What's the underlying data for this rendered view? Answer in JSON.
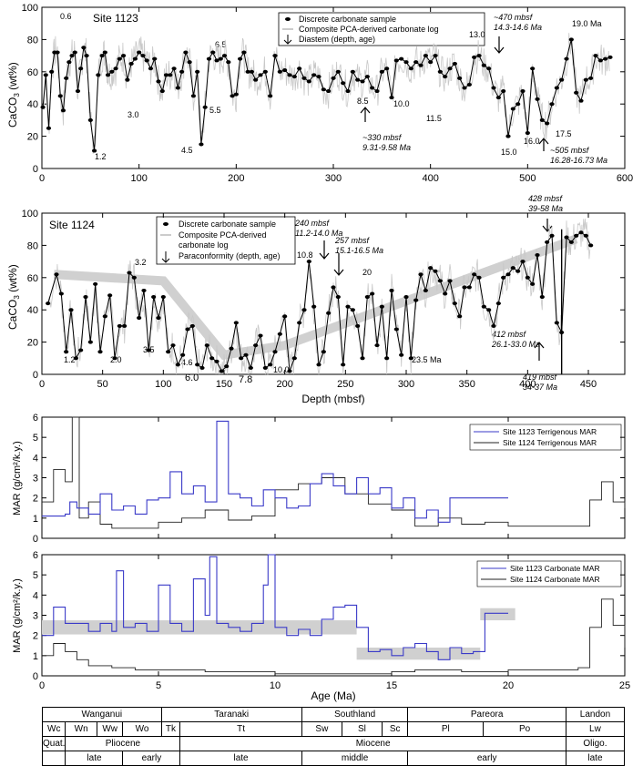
{
  "colors": {
    "site1123": "#3a3ac8",
    "site1124": "#222222",
    "composite": "#c8c8c8",
    "trend": "#d0d0d0"
  },
  "panel_a": {
    "site_label": "Site 1123",
    "ylabel_main": "CaCO",
    "ylabel_sub": "3",
    "ylabel_tail": " (wt%)",
    "yticks": [
      "0",
      "20",
      "40",
      "60",
      "80",
      "100"
    ],
    "xticks": [
      "0",
      "100",
      "200",
      "300",
      "400",
      "500",
      "600"
    ],
    "legend": [
      "Discrete carbonate sample",
      "Composite PCA-derived carbonate log",
      "Diastem (depth, age)"
    ],
    "age_labels": [
      "0.6",
      "1.2",
      "3.0",
      "4.5",
      "5.5",
      "6.5",
      "8.5",
      "10.0",
      "11.5",
      "13.0",
      "15.0",
      "16.0",
      "17.5",
      "19.0 Ma"
    ],
    "diastem1_line1": "~330 mbsf",
    "diastem1_line2": "9.31-9.58 Ma",
    "diastem2_line1": "~470 mbsf",
    "diastem2_line2": "14.3-14.6 Ma",
    "diastem3_line1": "~505 mbsf",
    "diastem3_line2": "16.28-16.73 Ma"
  },
  "panel_b": {
    "site_label": "Site 1124",
    "ylabel_main": "CaCO",
    "ylabel_sub": "3",
    "ylabel_tail": " (wt%)",
    "yticks": [
      "0",
      "20",
      "40",
      "60",
      "80",
      "100"
    ],
    "xticks": [
      "0",
      "50",
      "100",
      "150",
      "200",
      "250",
      "300",
      "350",
      "400",
      "450"
    ],
    "xlabel": "Depth (mbsf)",
    "legend": [
      "Discrete carbonate sample",
      "Composite PCA-derived",
      "carbonate log",
      "Paraconformity (depth, age)"
    ],
    "age_labels": [
      "1.2",
      "2.0",
      "3.2",
      "3.5",
      "4.6",
      "6.0",
      "7.8",
      "10.0",
      "10.8",
      "20",
      "23.5 Ma"
    ],
    "pc1_line1": "240 mbsf",
    "pc1_line2": "11.2-14.0 Ma",
    "pc2_line1": "257 mbsf",
    "pc2_line2": "15.1-16.5 Ma",
    "pc3_line1": "428 mbsf",
    "pc3_line2": "39-58 Ma",
    "pc4_line1": "412 mbsf",
    "pc4_line2": "26.1-33.0 Ma",
    "pc5_line1": "419 mbsf",
    "pc5_line2": "34-37 Ma"
  },
  "panel_c": {
    "ylabel": "MAR (g/cm²/k.y.)",
    "yticks": [
      "0",
      "1",
      "2",
      "3",
      "4",
      "5",
      "6"
    ],
    "legend": [
      "Site 1123 Terrigenous MAR",
      "Site 1124 Terrigenous MAR"
    ]
  },
  "panel_d": {
    "ylabel": "MAR (g/cm²/k.y.)",
    "yticks": [
      "0",
      "1",
      "2",
      "3",
      "4",
      "5",
      "6"
    ],
    "xticks": [
      "0",
      "5",
      "10",
      "15",
      "20",
      "25"
    ],
    "xlabel": "Age (Ma)",
    "legend": [
      "Site 1123 Carbonate MAR",
      "Site 1124 Carbonate MAR"
    ]
  },
  "strat": {
    "series": [
      "Wanganui",
      "Taranaki",
      "Southland",
      "Pareora",
      "Landon"
    ],
    "stages": [
      "Wc",
      "Wn",
      "Ww",
      "Wo",
      "Tk",
      "Tt",
      "Sw",
      "Sl",
      "Sc",
      "Pl",
      "Po",
      "Lw"
    ],
    "epochs": [
      "Quat.",
      "Pliocene",
      "Miocene",
      "Oligo."
    ],
    "subdivisions": [
      "late",
      "early",
      "late",
      "middle",
      "early",
      "late"
    ]
  },
  "chart_data": [
    {
      "type": "scatter",
      "title": "Site 1123",
      "xlabel": "",
      "ylabel": "CaCO3 (wt%)",
      "xlim": [
        0,
        600
      ],
      "ylim": [
        0,
        100
      ],
      "series": [
        {
          "name": "Discrete carbonate sample",
          "x": [
            1,
            4,
            7,
            10,
            13,
            16,
            19,
            22,
            25,
            28,
            31,
            34,
            37,
            40,
            43,
            46,
            50,
            54,
            58,
            62,
            65,
            68,
            72,
            76,
            80,
            84,
            88,
            92,
            96,
            100,
            104,
            108,
            112,
            116,
            120,
            124,
            128,
            132,
            136,
            140,
            144,
            148,
            152,
            156,
            160,
            164,
            168,
            172,
            176,
            180,
            184,
            188,
            192,
            196,
            200,
            204,
            208,
            212,
            216,
            220,
            225,
            230,
            235,
            240,
            245,
            250,
            255,
            260,
            265,
            270,
            275,
            280,
            285,
            290,
            295,
            300,
            305,
            310,
            315,
            320,
            325,
            330,
            335,
            340,
            345,
            350,
            355,
            360,
            365,
            370,
            375,
            380,
            385,
            390,
            395,
            400,
            405,
            410,
            415,
            420,
            425,
            430,
            435,
            440,
            445,
            450,
            455,
            460,
            465,
            470,
            475,
            480,
            485,
            490,
            495,
            500,
            505,
            510,
            515,
            520,
            525,
            530,
            535,
            540,
            545,
            550,
            555,
            560,
            565,
            570,
            575,
            580,
            585
          ],
          "y": [
            38,
            58,
            25,
            60,
            72,
            72,
            45,
            36,
            56,
            66,
            70,
            72,
            48,
            62,
            75,
            70,
            30,
            11,
            58,
            70,
            72,
            58,
            60,
            62,
            68,
            70,
            55,
            65,
            68,
            72,
            70,
            67,
            62,
            68,
            54,
            48,
            58,
            58,
            62,
            50,
            60,
            72,
            66,
            45,
            60,
            15,
            38,
            68,
            72,
            67,
            68,
            70,
            66,
            45,
            46,
            68,
            72,
            60,
            60,
            55,
            58,
            60,
            45,
            70,
            60,
            61,
            58,
            57,
            62,
            56,
            54,
            58,
            57,
            49,
            48,
            56,
            60,
            53,
            48,
            60,
            55,
            54,
            57,
            50,
            48,
            60,
            62,
            44,
            67,
            68,
            66,
            62,
            66,
            64,
            70,
            66,
            70,
            60,
            57,
            62,
            65,
            56,
            50,
            52,
            69,
            70,
            64,
            62,
            50,
            44,
            48,
            20,
            37,
            40,
            48,
            22,
            62,
            43,
            30,
            28,
            40,
            50,
            55,
            68,
            80,
            47,
            42,
            55,
            56,
            70,
            67,
            68,
            69
          ]
        }
      ]
    },
    {
      "type": "scatter",
      "title": "Site 1124",
      "xlabel": "Depth (mbsf)",
      "ylabel": "CaCO3 (wt%)",
      "xlim": [
        0,
        480
      ],
      "ylim": [
        0,
        100
      ],
      "series": [
        {
          "name": "Discrete carbonate sample",
          "x": [
            5,
            12,
            16,
            20,
            24,
            28,
            32,
            36,
            40,
            44,
            48,
            52,
            56,
            60,
            64,
            68,
            72,
            76,
            80,
            84,
            88,
            92,
            96,
            100,
            104,
            108,
            112,
            116,
            120,
            124,
            128,
            132,
            136,
            140,
            144,
            148,
            152,
            156,
            160,
            164,
            168,
            172,
            176,
            180,
            184,
            188,
            192,
            196,
            200,
            204,
            208,
            212,
            216,
            220,
            224,
            228,
            232,
            236,
            240,
            244,
            248,
            252,
            256,
            260,
            264,
            268,
            272,
            276,
            280,
            284,
            288,
            292,
            296,
            300,
            304,
            308,
            312,
            316,
            320,
            324,
            328,
            332,
            336,
            340,
            344,
            348,
            352,
            356,
            360,
            364,
            368,
            372,
            376,
            380,
            384,
            388,
            392,
            396,
            400,
            404,
            408,
            412,
            416,
            420,
            424,
            428,
            432,
            436,
            440,
            444,
            448,
            452
          ],
          "y": [
            44,
            62,
            50,
            14,
            40,
            10,
            15,
            48,
            20,
            56,
            14,
            36,
            49,
            10,
            30,
            30,
            63,
            60,
            35,
            52,
            15,
            48,
            35,
            48,
            14,
            18,
            6,
            12,
            28,
            30,
            6,
            4,
            18,
            10,
            8,
            2,
            5,
            16,
            32,
            10,
            12,
            4,
            18,
            24,
            4,
            6,
            14,
            25,
            36,
            2,
            10,
            32,
            40,
            70,
            42,
            6,
            14,
            38,
            54,
            48,
            6,
            42,
            40,
            30,
            10,
            48,
            50,
            18,
            42,
            10,
            52,
            28,
            12,
            48,
            10,
            46,
            62,
            52,
            66,
            64,
            58,
            50,
            58,
            44,
            36,
            54,
            54,
            62,
            60,
            42,
            40,
            30,
            44,
            60,
            62,
            66,
            64,
            70,
            60,
            56,
            74,
            48,
            82,
            86,
            32,
            26,
            85,
            82,
            86,
            88,
            86,
            80
          ]
        }
      ]
    },
    {
      "type": "line",
      "title": "",
      "xlabel": "Age (Ma)",
      "ylabel": "MAR (g/cm2/k.y.)",
      "xlim": [
        0,
        25
      ],
      "ylim": [
        0,
        6
      ],
      "series": [
        {
          "name": "Site 1123 Terrigenous MAR",
          "x": [
            0,
            1,
            1.2,
            1.5,
            2,
            2.5,
            3,
            3.5,
            4,
            4.5,
            5,
            5.5,
            6,
            6.5,
            7,
            7.5,
            8,
            8.5,
            9,
            9.5,
            10,
            10.5,
            11,
            11.5,
            12,
            12.5,
            13,
            13.5,
            14,
            14.5,
            15,
            15.5,
            16,
            16.5,
            17,
            17.5,
            18,
            18.5,
            19,
            19.5,
            20
          ],
          "y": [
            1.1,
            1.2,
            1.8,
            1.5,
            1.2,
            2.2,
            1.4,
            1.6,
            1.2,
            1.9,
            2.0,
            3.3,
            2.2,
            2.6,
            1.8,
            5.8,
            2.2,
            2.0,
            1.6,
            2.4,
            2.0,
            1.5,
            1.6,
            2.7,
            3.2,
            2.6,
            2.2,
            3.0,
            2.2,
            2.5,
            1.5,
            2.0,
            1.0,
            1.4,
            0.8,
            2.0,
            2.0,
            2.0,
            2.0,
            2.0,
            2.0
          ]
        },
        {
          "name": "Site 1124 Terrigenous MAR",
          "x": [
            0,
            0.5,
            1,
            1.3,
            1.6,
            2,
            2.5,
            3,
            4,
            5,
            6,
            7,
            8,
            9,
            10,
            11,
            12,
            13,
            14,
            15,
            16,
            17,
            18,
            19,
            20,
            21,
            22,
            23,
            23.5,
            24,
            24.5,
            25
          ],
          "y": [
            1.8,
            3.4,
            2.8,
            6.0,
            1.0,
            1.8,
            0.7,
            0.5,
            0.5,
            0.8,
            1.0,
            1.4,
            0.9,
            1.1,
            2.4,
            2.7,
            3.0,
            2.2,
            1.7,
            1.4,
            0.6,
            1.0,
            0.7,
            0.8,
            0.6,
            0.6,
            0.6,
            0.6,
            1.9,
            2.8,
            1.8,
            1.5
          ]
        }
      ]
    },
    {
      "type": "line",
      "title": "",
      "xlabel": "Age (Ma)",
      "ylabel": "MAR (g/cm2/k.y.)",
      "xlim": [
        0,
        25
      ],
      "ylim": [
        0,
        6
      ],
      "series": [
        {
          "name": "Site 1123 Carbonate MAR",
          "x": [
            0,
            0.5,
            1,
            1.5,
            2,
            2.5,
            3,
            3.2,
            3.5,
            4,
            4.5,
            5,
            5.5,
            6,
            6.5,
            7,
            7.2,
            7.5,
            8,
            8.5,
            9,
            9.5,
            9.7,
            10,
            10.5,
            11,
            11.5,
            12,
            12.5,
            13,
            13.5,
            14,
            14.5,
            15,
            15.5,
            16,
            16.5,
            17,
            17.5,
            18,
            18.5,
            19,
            19.5,
            20
          ],
          "y": [
            2.0,
            3.4,
            2.6,
            2.6,
            2.2,
            2.6,
            2.2,
            5.2,
            2.4,
            2.6,
            2.2,
            4.5,
            2.6,
            2.2,
            4.8,
            3.0,
            5.9,
            2.6,
            2.4,
            2.2,
            2.6,
            4.5,
            6.0,
            2.4,
            2.0,
            2.3,
            2.0,
            2.8,
            3.4,
            3.5,
            2.4,
            1.2,
            1.3,
            1.0,
            1.4,
            1.6,
            1.2,
            0.8,
            1.4,
            1.1,
            1.2,
            3.1,
            3.1,
            3.1
          ]
        },
        {
          "name": "Site 1124 Carbonate MAR",
          "x": [
            0,
            0.5,
            1,
            1.5,
            2,
            3,
            4,
            5,
            6,
            7,
            8,
            9,
            10,
            11,
            13,
            14,
            15,
            16,
            18,
            19,
            20,
            21,
            22,
            23,
            23.5,
            24,
            24.5,
            25
          ],
          "y": [
            1.0,
            1.6,
            1.2,
            0.8,
            0.5,
            0.4,
            0.3,
            0.3,
            0.3,
            0.2,
            0.2,
            0.2,
            0.1,
            0.1,
            0.1,
            0.1,
            0.2,
            0.3,
            0.2,
            0.2,
            0.3,
            0.3,
            0.3,
            0.4,
            2.4,
            3.8,
            2.5,
            1.4
          ]
        }
      ]
    }
  ]
}
